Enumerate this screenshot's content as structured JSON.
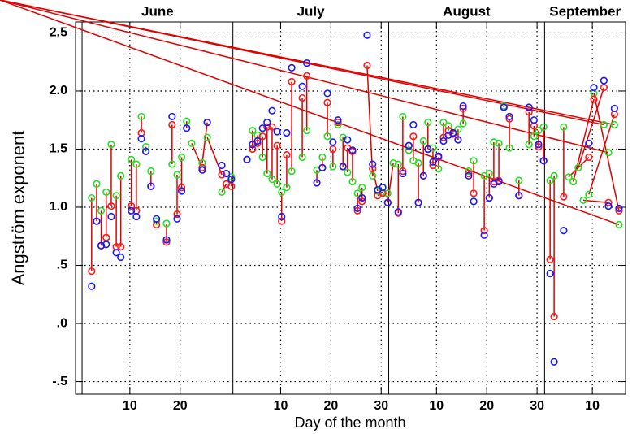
{
  "chart_data": {
    "type": "scatter",
    "x_label": "Day of the month",
    "y_label": "Angström exponent",
    "xlim": [
      -0.8,
      108.6
    ],
    "ylim": [
      -0.608,
      2.594
    ],
    "xticks": [
      10,
      20,
      {
        "value": 40,
        "label": "10"
      },
      {
        "value": 50,
        "label": "20"
      },
      {
        "value": 60,
        "label": "30"
      },
      {
        "value": 71,
        "label": "10"
      },
      {
        "value": 81,
        "label": "20"
      },
      {
        "value": 91,
        "label": "30"
      },
      {
        "value": 102,
        "label": "10"
      }
    ],
    "yticks": [
      {
        "value": 2.5,
        "label": "2.5"
      },
      {
        "value": 2.0,
        "label": "2.0"
      },
      1.5,
      {
        "value": 1.0,
        "label": "1.0"
      },
      {
        "value": 0.5,
        "label": ".5"
      },
      {
        "value": 0,
        "label": ".0"
      },
      {
        "value": -0.5,
        "label": "-.5"
      }
    ],
    "grid": true,
    "months": [
      {
        "label": "June",
        "start": 0.5,
        "end": 30.5
      },
      {
        "label": "July",
        "start": 30.5,
        "end": 61.5
      },
      {
        "label": "August",
        "start": 61.5,
        "end": 92.5
      },
      {
        "label": "September",
        "start": 92.5,
        "end": 122.5
      }
    ],
    "connect_series": [
      0,
      1
    ],
    "connector_color": "#e00000",
    "series": [
      {
        "color": "#22e022",
        "x": [
          2.4,
          3.4,
          4.3,
          5.3,
          6.3,
          7.3,
          8.2,
          10.3,
          11.3,
          12.3,
          13.2,
          14.2,
          15.3,
          17.3,
          18.4,
          19.4,
          20.3,
          21.3,
          22.3,
          24.4,
          25.4,
          28.3,
          30.2,
          33.3,
          34.4,
          35.4,
          36.4,
          37.3,
          38.3,
          39.3,
          40.2,
          41.2,
          42.2,
          44.3,
          45.2,
          47.2,
          48.3,
          49.3,
          50.4,
          51.4,
          52.4,
          53.3,
          54.3,
          55.3,
          56.2,
          58.3,
          59.3,
          60.3,
          61.3,
          62.4,
          63.4,
          64.3,
          65.5,
          66.4,
          67.4,
          68.4,
          69.3,
          70.3,
          71.4,
          72.4,
          73.4,
          74.3,
          75.3,
          76.3,
          77.4,
          78.4,
          80.5,
          81.5,
          82.4,
          83.4,
          84.4,
          85.5,
          87.4,
          89.4,
          90.4,
          91.3,
          92.3,
          93.6,
          94.4,
          96.3,
          97.3,
          98.2,
          99.2,
          100.2,
          101.3,
          102.3,
          104.3,
          105.2,
          106.4,
          107.3
        ],
        "values": [
          1.08,
          1.2,
          0.97,
          1.13,
          1.54,
          1.1,
          1.27,
          1.41,
          1.37,
          1.78,
          1.52,
          1.31,
          0.88,
          0.86,
          1.37,
          1.28,
          1.43,
          1.74,
          1.55,
          1.38,
          1.6,
          1.13,
          1.26,
          1.41,
          1.66,
          1.62,
          1.43,
          1.29,
          1.24,
          1.2,
          1.13,
          1.17,
          1.31,
          1.43,
          1.66,
          1.32,
          1.43,
          1.61,
          1.35,
          1.71,
          1.6,
          1.3,
          1.22,
          1.12,
          1.17,
          1.27,
          1.14,
          1.13,
          1.12,
          1.38,
          1.37,
          1.78,
          1.49,
          1.4,
          1.38,
          1.57,
          1.73,
          1.51,
          1.33,
          1.73,
          1.7,
          1.64,
          1.67,
          1.72,
          1.31,
          1.4,
          1.27,
          1.29,
          1.56,
          1.55,
          1.87,
          1.51,
          1.23,
          1.54,
          1.61,
          1.66,
          1.69,
          1.23,
          1.27,
          1.69,
          1.26,
          1.22,
          1.34,
          1.06,
          1.11,
          1.98,
          1.71,
          1.47,
          1.71,
          0.85
        ]
      },
      {
        "color": "#ff1a1a",
        "x": [
          2.4,
          3.4,
          4.3,
          5.3,
          6.3,
          7.3,
          8.2,
          10.3,
          11.3,
          12.3,
          13.2,
          14.2,
          15.3,
          17.3,
          18.4,
          19.4,
          20.3,
          21.3,
          24.4,
          25.4,
          28.3,
          29.2,
          30.2,
          33.3,
          34.4,
          35.4,
          36.4,
          37.3,
          38.3,
          39.3,
          40.2,
          41.2,
          42.2,
          44.3,
          45.2,
          47.2,
          48.3,
          49.3,
          50.4,
          51.4,
          52.4,
          53.3,
          54.3,
          55.3,
          56.2,
          57.2,
          58.3,
          59.3,
          60.3,
          61.3,
          63.4,
          64.3,
          65.5,
          66.4,
          67.4,
          68.4,
          69.3,
          70.3,
          71.4,
          72.4,
          73.4,
          74.3,
          75.3,
          76.3,
          77.4,
          78.4,
          80.5,
          81.5,
          82.4,
          83.4,
          84.4,
          85.5,
          87.4,
          89.4,
          90.4,
          91.3,
          92.3,
          93.6,
          94.4,
          96.3,
          101.3,
          102.3,
          104.3,
          105.2,
          106.4,
          107.3
        ],
        "values": [
          0.45,
          0.88,
          0.67,
          0.74,
          1.01,
          0.66,
          0.66,
          1.01,
          0.97,
          1.64,
          1.48,
          1.18,
          0.85,
          0.7,
          1.71,
          0.94,
          1.17,
          1.68,
          1.34,
          1.73,
          1.28,
          1.2,
          1.18,
          1.41,
          1.5,
          1.55,
          1.61,
          1.69,
          1.69,
          1.53,
          0.88,
          1.45,
          2.08,
          1.94,
          2.13,
          1.21,
          1.34,
          1.9,
          1.5,
          1.73,
          1.35,
          1.51,
          1.48,
          0.97,
          1.05,
          2.22,
          1.33,
          1.1,
          1.12,
          1.04,
          0.95,
          1.31,
          1.53,
          1.61,
          1.04,
          1.27,
          1.5,
          1.36,
          1.43,
          1.6,
          1.66,
          1.63,
          1.58,
          1.85,
          1.29,
          1.12,
          0.8,
          1.08,
          1.22,
          1.23,
          1.86,
          1.76,
          1.1,
          1.82,
          1.7,
          1.52,
          1.4,
          0.55,
          0.06,
          1.09,
          1.43,
          1.93,
          2.03,
          1.04,
          1.8,
          0.97
        ]
      },
      {
        "color": "#1a1aff",
        "x": [
          2.4,
          3.4,
          4.3,
          5.3,
          6.3,
          7.3,
          8.2,
          10.3,
          11.3,
          12.3,
          13.2,
          14.2,
          15.3,
          17.3,
          18.4,
          19.4,
          20.3,
          21.3,
          24.4,
          25.4,
          28.3,
          29.2,
          30.2,
          33.3,
          34.4,
          35.4,
          36.4,
          37.3,
          38.3,
          39.3,
          40.2,
          41.2,
          42.2,
          44.3,
          45.2,
          47.2,
          48.3,
          49.3,
          50.4,
          51.4,
          52.4,
          53.3,
          54.3,
          55.3,
          56.2,
          57.2,
          58.3,
          59.3,
          60.3,
          61.3,
          63.4,
          64.3,
          65.5,
          66.4,
          67.4,
          68.4,
          69.3,
          70.3,
          71.4,
          72.4,
          73.4,
          74.3,
          75.3,
          76.3,
          77.4,
          78.4,
          80.5,
          81.5,
          82.4,
          83.4,
          84.4,
          85.5,
          87.4,
          89.4,
          90.4,
          91.3,
          92.3,
          93.6,
          94.4,
          96.3,
          101.3,
          102.3,
          104.3,
          105.2,
          106.4,
          107.3
        ],
        "values": [
          0.32,
          0.88,
          0.67,
          0.68,
          0.92,
          0.61,
          0.57,
          0.97,
          0.92,
          1.59,
          1.48,
          1.18,
          0.9,
          0.72,
          1.78,
          0.9,
          1.14,
          1.68,
          1.32,
          1.73,
          1.36,
          1.29,
          1.24,
          1.41,
          1.54,
          1.57,
          1.68,
          1.73,
          1.83,
          1.65,
          0.92,
          1.64,
          2.2,
          2.04,
          2.24,
          1.21,
          1.34,
          1.98,
          1.56,
          1.75,
          1.35,
          1.58,
          1.49,
          0.99,
          1.08,
          2.48,
          1.37,
          1.15,
          1.17,
          1.04,
          0.96,
          1.29,
          1.53,
          1.71,
          1.04,
          1.27,
          1.5,
          1.39,
          1.44,
          1.57,
          1.62,
          1.64,
          1.58,
          1.87,
          1.27,
          1.05,
          0.76,
          1.08,
          1.2,
          1.22,
          1.86,
          1.78,
          1.1,
          1.86,
          1.75,
          1.54,
          1.4,
          0.43,
          -0.33,
          0.8,
          1.55,
          2.03,
          2.09,
          1.01,
          1.85,
          0.99
        ]
      }
    ]
  }
}
